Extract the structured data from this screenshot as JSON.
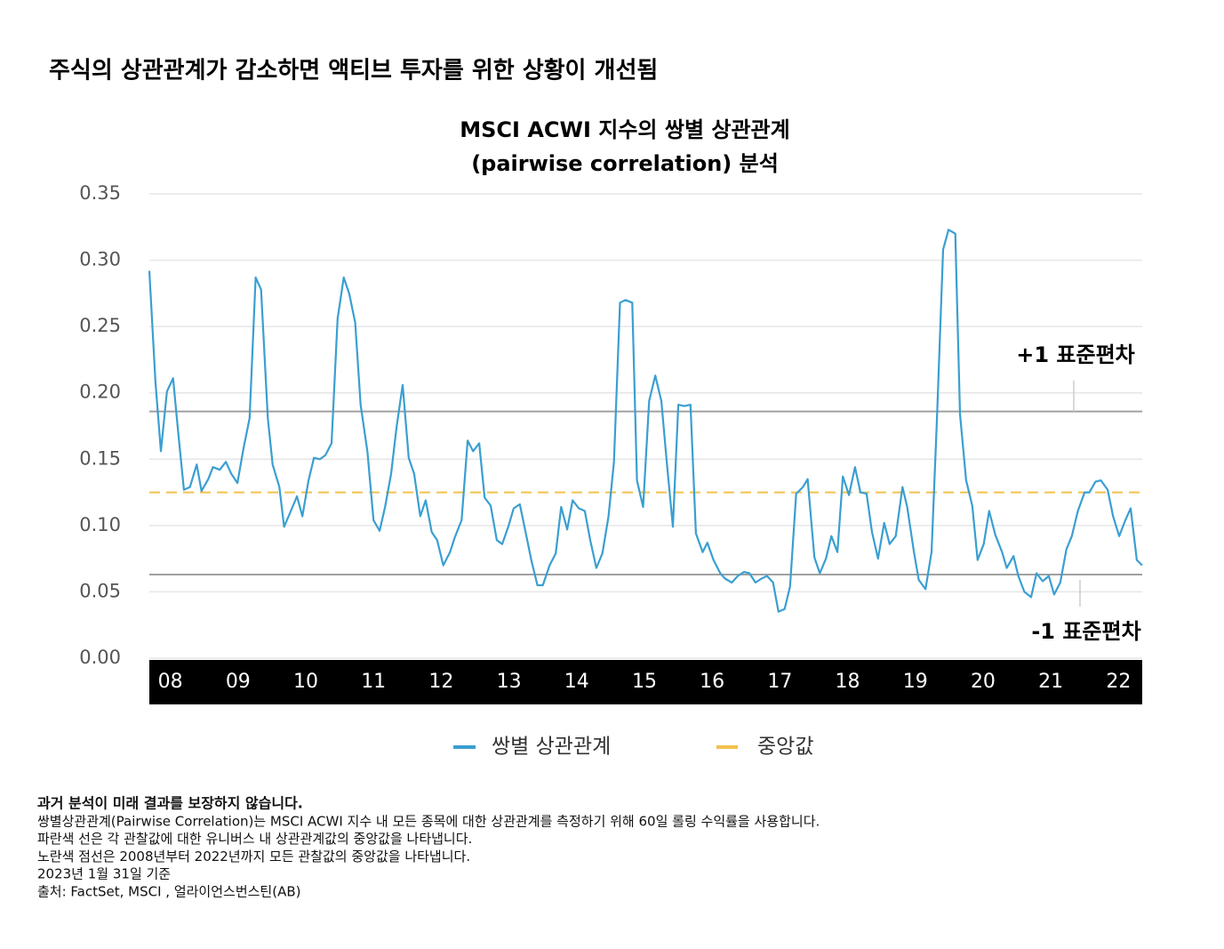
{
  "heading": "주식의 상관관계가 감소하면 액티브 투자를 위한 상황이 개선됨",
  "chart_data": {
    "type": "line",
    "title": [
      "MSCI ACWI 지수의 쌍별 상관관계",
      "(pairwise correlation) 분석"
    ],
    "xlim": [
      2008,
      2022.66
    ],
    "xticks": [
      {
        "value": 2008.31,
        "label": "08"
      },
      {
        "value": 2009.31,
        "label": "09"
      },
      {
        "value": 2010.31,
        "label": "10"
      },
      {
        "value": 2011.31,
        "label": "11"
      },
      {
        "value": 2012.31,
        "label": "12"
      },
      {
        "value": 2013.31,
        "label": "13"
      },
      {
        "value": 2014.31,
        "label": "14"
      },
      {
        "value": 2015.31,
        "label": "15"
      },
      {
        "value": 2016.31,
        "label": "16"
      },
      {
        "value": 2017.31,
        "label": "17"
      },
      {
        "value": 2018.31,
        "label": "18"
      },
      {
        "value": 2019.31,
        "label": "19"
      },
      {
        "value": 2020.31,
        "label": "20"
      },
      {
        "value": 2021.31,
        "label": "21"
      },
      {
        "value": 2022.31,
        "label": "22"
      }
    ],
    "ylim": [
      0,
      0.35
    ],
    "yticks": [
      {
        "value": 0,
        "label": "0.00"
      },
      0.05,
      {
        "value": 0.1,
        "label": "0.10"
      },
      0.15,
      {
        "value": 0.2,
        "label": "0.20"
      },
      0.25,
      {
        "value": 0.3,
        "label": "0.30"
      },
      0.35
    ],
    "grid": true,
    "series": [
      {
        "name": "쌍별 상관관계",
        "color": "#3a9fd1",
        "x": [
          2008.0,
          2008.09,
          2008.17,
          2008.26,
          2008.35,
          2008.43,
          2008.51,
          2008.6,
          2008.7,
          2008.77,
          2008.87,
          2008.94,
          2009.04,
          2009.13,
          2009.21,
          2009.3,
          2009.39,
          2009.48,
          2009.57,
          2009.65,
          2009.75,
          2009.82,
          2009.92,
          2009.99,
          2010.09,
          2010.18,
          2010.26,
          2010.35,
          2010.43,
          2010.52,
          2010.6,
          2010.69,
          2010.78,
          2010.87,
          2010.95,
          2011.04,
          2011.12,
          2011.22,
          2011.31,
          2011.4,
          2011.48,
          2011.57,
          2011.65,
          2011.74,
          2011.83,
          2011.91,
          2012.0,
          2012.08,
          2012.17,
          2012.25,
          2012.34,
          2012.44,
          2012.51,
          2012.61,
          2012.7,
          2012.78,
          2012.87,
          2012.95,
          2013.04,
          2013.13,
          2013.21,
          2013.3,
          2013.38,
          2013.47,
          2013.56,
          2013.64,
          2013.73,
          2013.81,
          2013.91,
          2014.0,
          2014.08,
          2014.17,
          2014.25,
          2014.34,
          2014.43,
          2014.51,
          2014.6,
          2014.69,
          2014.78,
          2014.86,
          2014.95,
          2015.03,
          2015.13,
          2015.2,
          2015.29,
          2015.38,
          2015.47,
          2015.56,
          2015.64,
          2015.73,
          2015.81,
          2015.9,
          2015.99,
          2016.07,
          2016.17,
          2016.24,
          2016.33,
          2016.43,
          2016.5,
          2016.6,
          2016.69,
          2016.78,
          2016.86,
          2016.95,
          2017.04,
          2017.12,
          2017.21,
          2017.29,
          2017.38,
          2017.46,
          2017.55,
          2017.65,
          2017.72,
          2017.82,
          2017.9,
          2017.99,
          2018.07,
          2018.16,
          2018.24,
          2018.33,
          2018.42,
          2018.5,
          2018.59,
          2018.67,
          2018.76,
          2018.85,
          2018.93,
          2019.02,
          2019.12,
          2019.19,
          2019.29,
          2019.36,
          2019.46,
          2019.55,
          2019.63,
          2019.72,
          2019.8,
          2019.9,
          2019.97,
          2020.06,
          2020.15,
          2020.23,
          2020.32,
          2020.4,
          2020.49,
          2020.59,
          2020.66,
          2020.76,
          2020.83,
          2020.92,
          2021.02,
          2021.1,
          2021.19,
          2021.28,
          2021.36,
          2021.45,
          2021.54,
          2021.62,
          2021.71,
          2021.81,
          2021.88,
          2021.97,
          2022.05,
          2022.15,
          2022.23,
          2022.32,
          2022.41,
          2022.49,
          2022.58,
          2022.66
        ],
        "values": [
          0.292,
          0.208,
          0.156,
          0.201,
          0.211,
          0.168,
          0.127,
          0.129,
          0.146,
          0.126,
          0.135,
          0.144,
          0.142,
          0.148,
          0.139,
          0.132,
          0.158,
          0.181,
          0.287,
          0.278,
          0.181,
          0.146,
          0.129,
          0.099,
          0.111,
          0.122,
          0.107,
          0.134,
          0.151,
          0.15,
          0.153,
          0.162,
          0.256,
          0.287,
          0.275,
          0.253,
          0.191,
          0.156,
          0.104,
          0.096,
          0.114,
          0.139,
          0.174,
          0.206,
          0.151,
          0.139,
          0.107,
          0.119,
          0.095,
          0.089,
          0.07,
          0.08,
          0.091,
          0.104,
          0.164,
          0.156,
          0.162,
          0.121,
          0.115,
          0.089,
          0.086,
          0.099,
          0.113,
          0.116,
          0.094,
          0.074,
          0.055,
          0.055,
          0.07,
          0.079,
          0.114,
          0.097,
          0.119,
          0.113,
          0.111,
          0.089,
          0.068,
          0.079,
          0.107,
          0.148,
          0.268,
          0.27,
          0.268,
          0.134,
          0.114,
          0.194,
          0.213,
          0.194,
          0.148,
          0.099,
          0.191,
          0.19,
          0.191,
          0.094,
          0.08,
          0.087,
          0.074,
          0.064,
          0.06,
          0.057,
          0.062,
          0.065,
          0.064,
          0.057,
          0.06,
          0.062,
          0.057,
          0.035,
          0.037,
          0.054,
          0.124,
          0.129,
          0.135,
          0.076,
          0.064,
          0.075,
          0.092,
          0.08,
          0.137,
          0.123,
          0.144,
          0.125,
          0.124,
          0.095,
          0.075,
          0.102,
          0.086,
          0.092,
          0.129,
          0.114,
          0.08,
          0.059,
          0.052,
          0.08,
          0.181,
          0.308,
          0.323,
          0.32,
          0.184,
          0.134,
          0.115,
          0.074,
          0.086,
          0.111,
          0.093,
          0.08,
          0.068,
          0.077,
          0.062,
          0.05,
          0.046,
          0.064,
          0.058,
          0.062,
          0.048,
          0.057,
          0.082,
          0.092,
          0.111,
          0.125,
          0.125,
          0.133,
          0.134,
          0.127,
          0.107,
          0.092,
          0.104,
          0.113,
          0.074,
          0.07
        ]
      }
    ],
    "median": {
      "name": "중앙값",
      "value": 0.125,
      "color": "#f2c14e"
    },
    "std_lines": [
      {
        "label": "+1 표준편차",
        "value": 0.186
      },
      {
        "label": "-1 표준편차",
        "value": 0.063
      }
    ],
    "std_color": "#a0a0a0"
  },
  "footnotes": [
    "과거 분석이 미래 결과를 보장하지 않습니다.",
    "쌍별상관관계(Pairwise Correlation)는 MSCI ACWI 지수 내 모든 종목에 대한 상관관계를 측정하기 위해 60일 롤링 수익률을 사용합니다.",
    "파란색 선은 각 관찰값에 대한 유니버스 내 상관관계값의 중앙값을 나타냅니다.",
    "노란색 점선은  2008년부터 2022년까지 모든 관찰값의 중앙값을 나타냅니다.",
    "2023년 1월 31일 기준",
    "출처: FactSet, MSCI , 얼라이언스번스틴(AB)"
  ]
}
